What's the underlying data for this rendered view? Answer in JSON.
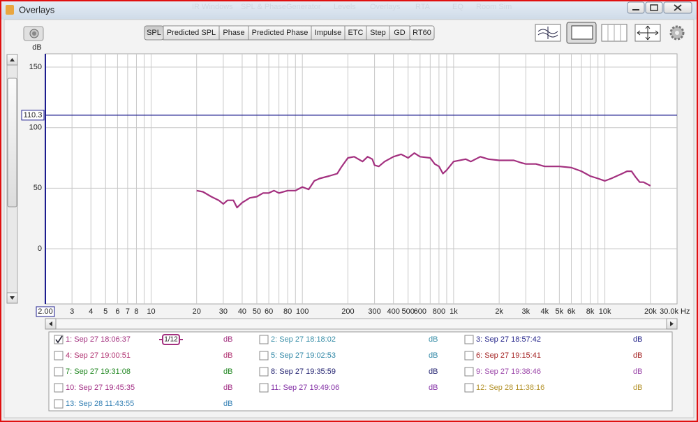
{
  "window": {
    "title": "Overlays"
  },
  "background_menu": [
    "IR Windows",
    "SPL & Phase",
    "Generator",
    "Levels",
    "Overlays",
    "RTA",
    "EQ",
    "Room Sim"
  ],
  "tabs": [
    {
      "label": "SPL",
      "selected": true
    },
    {
      "label": "Predicted SPL",
      "selected": false
    },
    {
      "label": "Phase",
      "selected": false
    },
    {
      "label": "Predicted Phase",
      "selected": false
    },
    {
      "label": "Impulse",
      "selected": false
    },
    {
      "label": "ETC",
      "selected": false
    },
    {
      "label": "Step",
      "selected": false
    },
    {
      "label": "GD",
      "selected": false
    },
    {
      "label": "RT60",
      "selected": false
    }
  ],
  "y_unit": "dB",
  "chart_data": {
    "type": "line",
    "x": [
      20,
      22,
      25,
      28,
      30,
      32,
      35,
      37,
      40,
      45,
      50,
      55,
      60,
      65,
      70,
      80,
      90,
      100,
      110,
      120,
      130,
      150,
      170,
      180,
      200,
      220,
      250,
      270,
      290,
      300,
      320,
      350,
      400,
      450,
      500,
      550,
      600,
      700,
      750,
      800,
      850,
      900,
      1000,
      1200,
      1300,
      1500,
      1700,
      2000,
      2500,
      2800,
      3000,
      3500,
      4000,
      5000,
      6000,
      7000,
      8000,
      9000,
      10000,
      11000,
      13000,
      14000,
      15000,
      16000,
      17000,
      18000,
      20000
    ],
    "series": [
      {
        "color": "#a3307f",
        "values": [
          48,
          47,
          43,
          40,
          37,
          40,
          40,
          34,
          38,
          42,
          43,
          46,
          46,
          48,
          46,
          48,
          48,
          51,
          49,
          56,
          58,
          60,
          62,
          67,
          75,
          76,
          72,
          76,
          74,
          69,
          68,
          72,
          76,
          78,
          75,
          79,
          76,
          75,
          70,
          68,
          62,
          65,
          72,
          74,
          72,
          76,
          74,
          73,
          73,
          71,
          70,
          70,
          68,
          68,
          67,
          64,
          60,
          58,
          56,
          58,
          62,
          64,
          64,
          59,
          55,
          55,
          52
        ]
      }
    ],
    "xlim": [
      2,
      30000
    ],
    "ylim": [
      -45.6,
      161
    ],
    "log_x": true,
    "grid": true,
    "xticks": [
      {
        "value": 2,
        "label": "2.00"
      },
      3,
      4,
      5,
      6,
      7,
      8,
      10,
      20,
      30,
      40,
      50,
      60,
      80,
      100,
      200,
      300,
      400,
      500,
      600,
      800,
      {
        "value": 1000,
        "label": "1k"
      },
      {
        "value": 2000,
        "label": "2k"
      },
      {
        "value": 3000,
        "label": "3k"
      },
      {
        "value": 4000,
        "label": "4k"
      },
      {
        "value": 5000,
        "label": "5k"
      },
      {
        "value": 6000,
        "label": "6k"
      },
      {
        "value": 8000,
        "label": "8k"
      },
      {
        "value": 10000,
        "label": "10k"
      },
      {
        "value": 20000,
        "label": "20k"
      },
      {
        "value": 30000,
        "label": "30.0k"
      }
    ],
    "minor_xticks": [
      9,
      70,
      90,
      700,
      900,
      7000,
      9000
    ],
    "x_unit": "Hz",
    "yticks": [
      0,
      50,
      100,
      150
    ],
    "reference_line": {
      "value": 110.3,
      "label": "110.3",
      "color": "#1c1c8e"
    }
  },
  "legend": {
    "smoothing": "1/12",
    "entries": [
      {
        "label": "1: Sep 27 18:06:37",
        "unit": "dB",
        "color": "#a3307f",
        "checked": true
      },
      {
        "label": "2: Sep 27 18:18:02",
        "unit": "dB",
        "color": "#3a8fa8",
        "checked": false
      },
      {
        "label": "3: Sep 27 18:57:42",
        "unit": "dB",
        "color": "#24248a",
        "checked": false
      },
      {
        "label": "4: Sep 27 19:00:51",
        "unit": "dB",
        "color": "#b03070",
        "checked": false
      },
      {
        "label": "5: Sep 27 19:02:53",
        "unit": "dB",
        "color": "#2f87a6",
        "checked": false
      },
      {
        "label": "6: Sep 27 19:15:41",
        "unit": "dB",
        "color": "#a42222",
        "checked": false
      },
      {
        "label": "7: Sep 27 19:31:08",
        "unit": "dB",
        "color": "#1f861f",
        "checked": false
      },
      {
        "label": "8: Sep 27 19:35:59",
        "unit": "dB",
        "color": "#1e1e6e",
        "checked": false
      },
      {
        "label": "9: Sep 27 19:38:46",
        "unit": "dB",
        "color": "#9a44a8",
        "checked": false
      },
      {
        "label": "10: Sep 27 19:45:35",
        "unit": "dB",
        "color": "#a33086",
        "checked": false
      },
      {
        "label": "11: Sep 27 19:49:06",
        "unit": "dB",
        "color": "#8431a6",
        "checked": false
      },
      {
        "label": "12: Sep 28 11:38:16",
        "unit": "dB",
        "color": "#b3922a",
        "checked": false
      },
      {
        "label": "13: Sep 28 11:43:55",
        "unit": "dB",
        "color": "#3580b4",
        "checked": false
      }
    ]
  }
}
